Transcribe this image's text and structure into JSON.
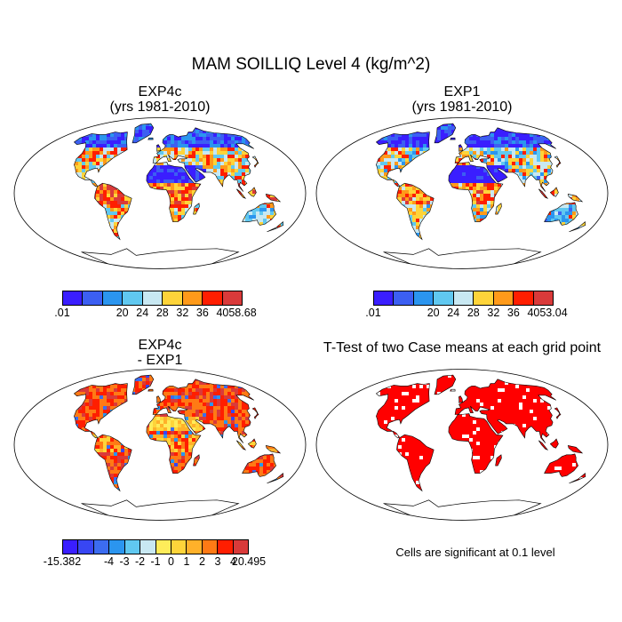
{
  "figure": {
    "title": "MAM SOILLIQ Level 4 (kg/m^2)",
    "note": "Cells are significant at 0.1 level"
  },
  "panels": [
    {
      "title1": "EXP4c",
      "title2": "(yrs 1981-2010)",
      "scheme": "abs"
    },
    {
      "title1": "EXP1",
      "title2": "(yrs 1981-2010)",
      "scheme": "abs"
    },
    {
      "title1": "EXP4c",
      "title2": "- EXP1",
      "scheme": "diff"
    },
    {
      "title1": "T-Test of two Case means at each grid point",
      "title2": "",
      "scheme": "sig"
    }
  ],
  "colorbars": {
    "exp4c": {
      "colors": [
        "#3a1eff",
        "#3c5ff2",
        "#2b95ef",
        "#60c8f0",
        "#c8e8f2",
        "#fed43a",
        "#ff9a1a",
        "#ff1e00",
        "#d93a3a"
      ],
      "labels": [
        ".01",
        "20",
        "24",
        "28",
        "32",
        "36",
        "40",
        "58.68"
      ]
    },
    "exp1": {
      "colors": [
        "#3a1eff",
        "#3c5ff2",
        "#2b95ef",
        "#60c8f0",
        "#c8e8f2",
        "#fed43a",
        "#ff9a1a",
        "#ff1e00",
        "#d93a3a"
      ],
      "labels": [
        ".01",
        "20",
        "24",
        "28",
        "32",
        "36",
        "40",
        "53.04"
      ]
    },
    "diff": {
      "colors": [
        "#3a1eff",
        "#3846f3",
        "#3c6cf0",
        "#2b95ef",
        "#60c8f0",
        "#c8e8f2",
        "#feec5a",
        "#fed43a",
        "#ffb12a",
        "#ff7a15",
        "#ff1e00",
        "#d93a3a"
      ],
      "labels": [
        "-15.382",
        "-4",
        "-3",
        "-2",
        "-1",
        "0",
        "1",
        "2",
        "3",
        "4",
        "20.495"
      ]
    }
  }
}
